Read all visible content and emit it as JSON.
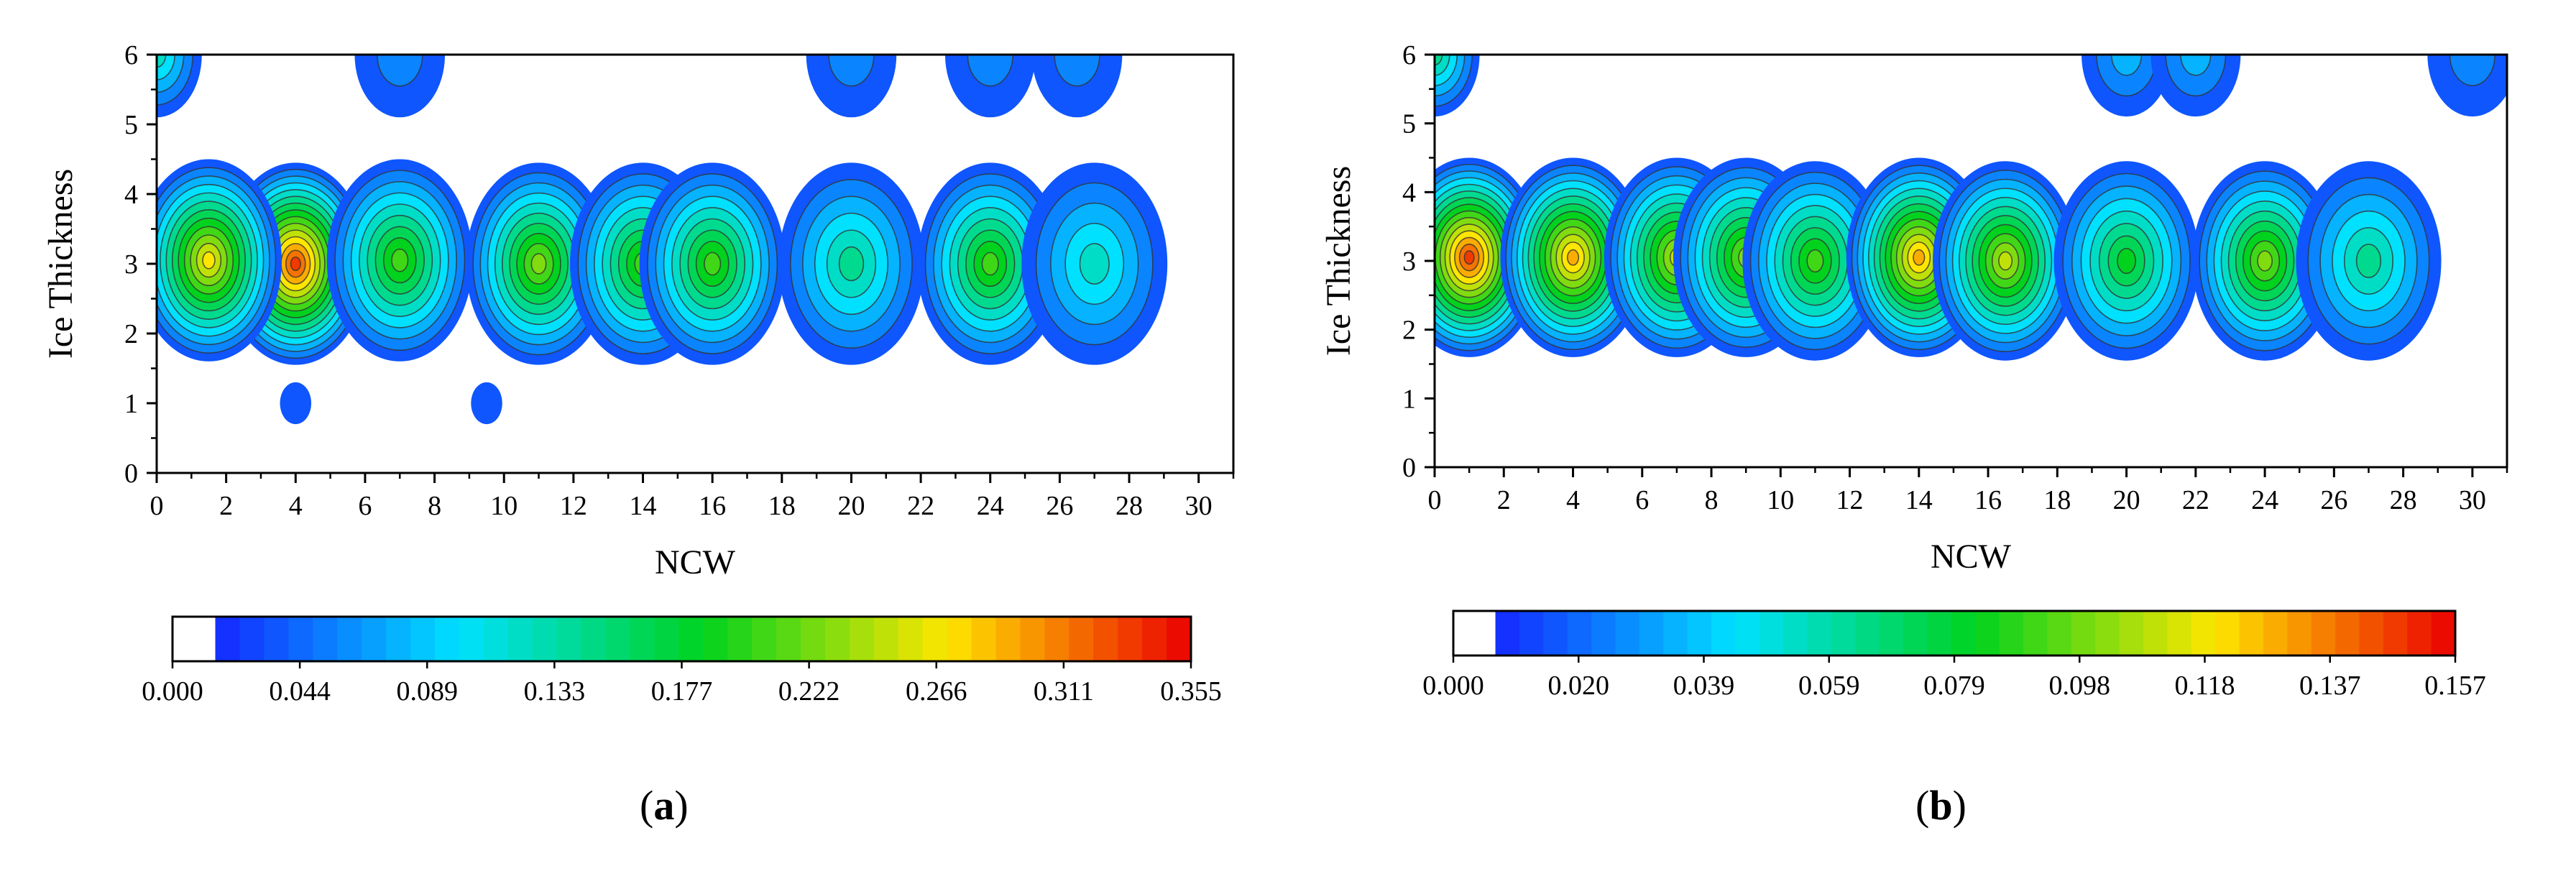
{
  "chart_data": [
    {
      "type": "heatmap",
      "subtype": "filled-contour",
      "panel_label": "a",
      "xlabel": "NCW",
      "ylabel": "Ice Thickness",
      "xlim": [
        0,
        31
      ],
      "ylim": [
        0,
        6
      ],
      "xticks": [
        "0",
        "2",
        "4",
        "6",
        "8",
        "10",
        "12",
        "14",
        "16",
        "18",
        "20",
        "22",
        "24",
        "26",
        "28",
        "30"
      ],
      "yticks": [
        "0",
        "1",
        "2",
        "3",
        "4",
        "5",
        "6"
      ],
      "colorbar_ticks": [
        "0.000",
        "0.044",
        "0.089",
        "0.133",
        "0.177",
        "0.222",
        "0.266",
        "0.311",
        "0.355"
      ],
      "colorbar_range": [
        0,
        0.355
      ],
      "peaks": [
        {
          "x": 4,
          "y": 3.0,
          "value": 0.33
        },
        {
          "x": 1.5,
          "y": 3.05,
          "value": 0.26
        },
        {
          "x": 7,
          "y": 3.05,
          "value": 0.2
        },
        {
          "x": 11,
          "y": 3.0,
          "value": 0.22
        },
        {
          "x": 14,
          "y": 3.0,
          "value": 0.21
        },
        {
          "x": 16,
          "y": 3.0,
          "value": 0.2
        },
        {
          "x": 20,
          "y": 3.0,
          "value": 0.14
        },
        {
          "x": 24,
          "y": 3.0,
          "value": 0.19
        },
        {
          "x": 27,
          "y": 3.0,
          "value": 0.12
        },
        {
          "x": 4,
          "y": 1.0,
          "value": 0.02
        },
        {
          "x": 9.5,
          "y": 1.0,
          "value": 0.02
        },
        {
          "x": 0,
          "y": 6.0,
          "value": 0.12
        },
        {
          "x": 7,
          "y": 6.0,
          "value": 0.05
        },
        {
          "x": 20,
          "y": 6.0,
          "value": 0.05
        },
        {
          "x": 24,
          "y": 6.0,
          "value": 0.05
        },
        {
          "x": 26.5,
          "y": 6.0,
          "value": 0.05
        }
      ]
    },
    {
      "type": "heatmap",
      "subtype": "filled-contour",
      "panel_label": "b",
      "xlabel": "NCW",
      "ylabel": "Ice Thickness",
      "xlim": [
        0,
        31
      ],
      "ylim": [
        0,
        6
      ],
      "xticks": [
        "0",
        "2",
        "4",
        "6",
        "8",
        "10",
        "12",
        "14",
        "16",
        "18",
        "20",
        "22",
        "24",
        "26",
        "28",
        "30"
      ],
      "yticks": [
        "0",
        "1",
        "2",
        "3",
        "4",
        "5",
        "6"
      ],
      "colorbar_ticks": [
        "0.000",
        "0.020",
        "0.039",
        "0.059",
        "0.079",
        "0.098",
        "0.118",
        "0.137",
        "0.157"
      ],
      "colorbar_range": [
        0,
        0.157
      ],
      "peaks": [
        {
          "x": 1,
          "y": 3.05,
          "value": 0.15
        },
        {
          "x": 4,
          "y": 3.05,
          "value": 0.13
        },
        {
          "x": 7,
          "y": 3.05,
          "value": 0.11
        },
        {
          "x": 9,
          "y": 3.05,
          "value": 0.1
        },
        {
          "x": 11,
          "y": 3.0,
          "value": 0.09
        },
        {
          "x": 14,
          "y": 3.05,
          "value": 0.13
        },
        {
          "x": 16.5,
          "y": 3.0,
          "value": 0.11
        },
        {
          "x": 20,
          "y": 3.0,
          "value": 0.08
        },
        {
          "x": 24,
          "y": 3.0,
          "value": 0.1
        },
        {
          "x": 27,
          "y": 3.0,
          "value": 0.06
        },
        {
          "x": 0,
          "y": 6.0,
          "value": 0.06
        },
        {
          "x": 20,
          "y": 6.0,
          "value": 0.03
        },
        {
          "x": 22,
          "y": 6.0,
          "value": 0.03
        },
        {
          "x": 30,
          "y": 6.0,
          "value": 0.02
        }
      ]
    }
  ]
}
